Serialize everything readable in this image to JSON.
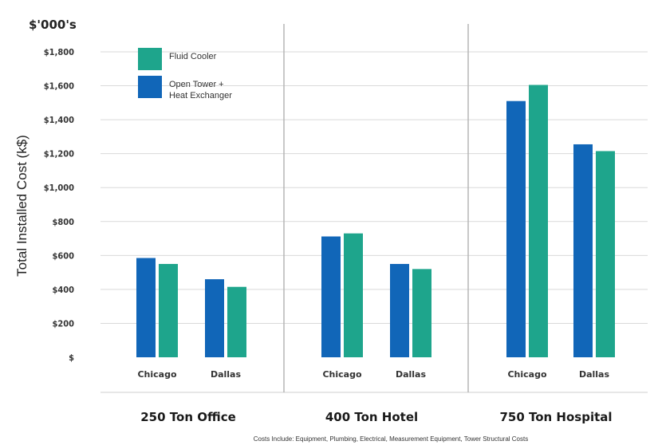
{
  "chart_data": {
    "type": "bar",
    "unit_label": "$'000's",
    "ylabel": "Total Installed Cost (k$)",
    "ylim": [
      0,
      1800
    ],
    "yticks": [
      0,
      200,
      400,
      600,
      800,
      1000,
      1200,
      1400,
      1600,
      1800
    ],
    "ytick_labels": [
      "$",
      "$200",
      "$400",
      "$600",
      "$800",
      "$1,000",
      "$1,200",
      "$1,400",
      "$1,600",
      "$1,800"
    ],
    "grid": true,
    "legend_position": "top-left",
    "groups": [
      {
        "name": "250 Ton Office",
        "categories": [
          "Chicago",
          "Dallas"
        ]
      },
      {
        "name": "400 Ton Hotel",
        "categories": [
          "Chicago",
          "Dallas"
        ]
      },
      {
        "name": "750 Ton Hospital",
        "categories": [
          "Chicago",
          "Dallas"
        ]
      }
    ],
    "series": [
      {
        "name": "Open Tower + Heat Exchanger",
        "legend_lines": [
          "Open Tower +",
          "Heat Exchanger"
        ],
        "color": "#1166b8",
        "values": [
          585,
          460,
          712,
          550,
          1510,
          1255
        ]
      },
      {
        "name": "Fluid Cooler",
        "legend_lines": [
          "Fluid Cooler"
        ],
        "color": "#1ea58c",
        "values": [
          550,
          415,
          730,
          520,
          1605,
          1215
        ]
      }
    ],
    "legend_order": [
      1,
      0
    ],
    "footnote": "Costs Include: Equipment, Plumbing, Electrical, Measurement Equipment, Tower Structural Costs"
  }
}
